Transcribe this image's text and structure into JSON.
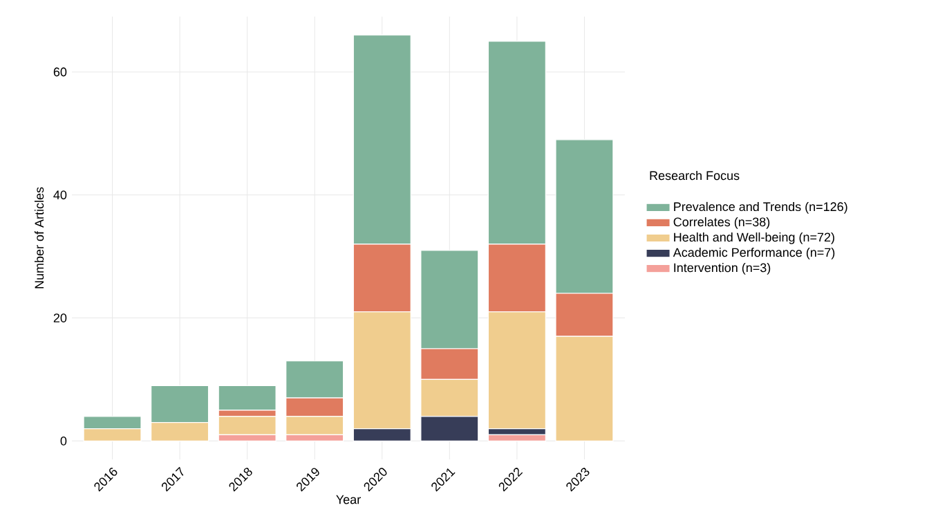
{
  "chart_data": {
    "type": "bar",
    "stacked": true,
    "xlabel": "Year",
    "ylabel": "Number of Articles",
    "legend_title": "Research Focus",
    "legend": "right",
    "grid": true,
    "categories": [
      "2016",
      "2017",
      "2018",
      "2019",
      "2020",
      "2021",
      "2022",
      "2023"
    ],
    "ylim": [
      -3,
      69
    ],
    "yticks": [
      0,
      20,
      40,
      60
    ],
    "series": [
      {
        "name": "Intervention (n=3)",
        "color": "#f4a09a",
        "values": [
          0,
          0,
          1,
          1,
          0,
          0,
          1,
          0
        ]
      },
      {
        "name": "Academic Performance (n=7)",
        "color": "#373d58",
        "values": [
          0,
          0,
          0,
          0,
          2,
          4,
          1,
          0
        ]
      },
      {
        "name": "Health and Well-being (n=72)",
        "color": "#f0cd8e",
        "values": [
          2,
          3,
          3,
          3,
          19,
          6,
          19,
          17
        ]
      },
      {
        "name": "Correlates (n=38)",
        "color": "#e07b5f",
        "values": [
          0,
          0,
          1,
          3,
          11,
          5,
          11,
          7
        ]
      },
      {
        "name": "Prevalence and Trends (n=126)",
        "color": "#7fb39a",
        "values": [
          2,
          6,
          4,
          6,
          34,
          16,
          33,
          25
        ]
      }
    ]
  }
}
